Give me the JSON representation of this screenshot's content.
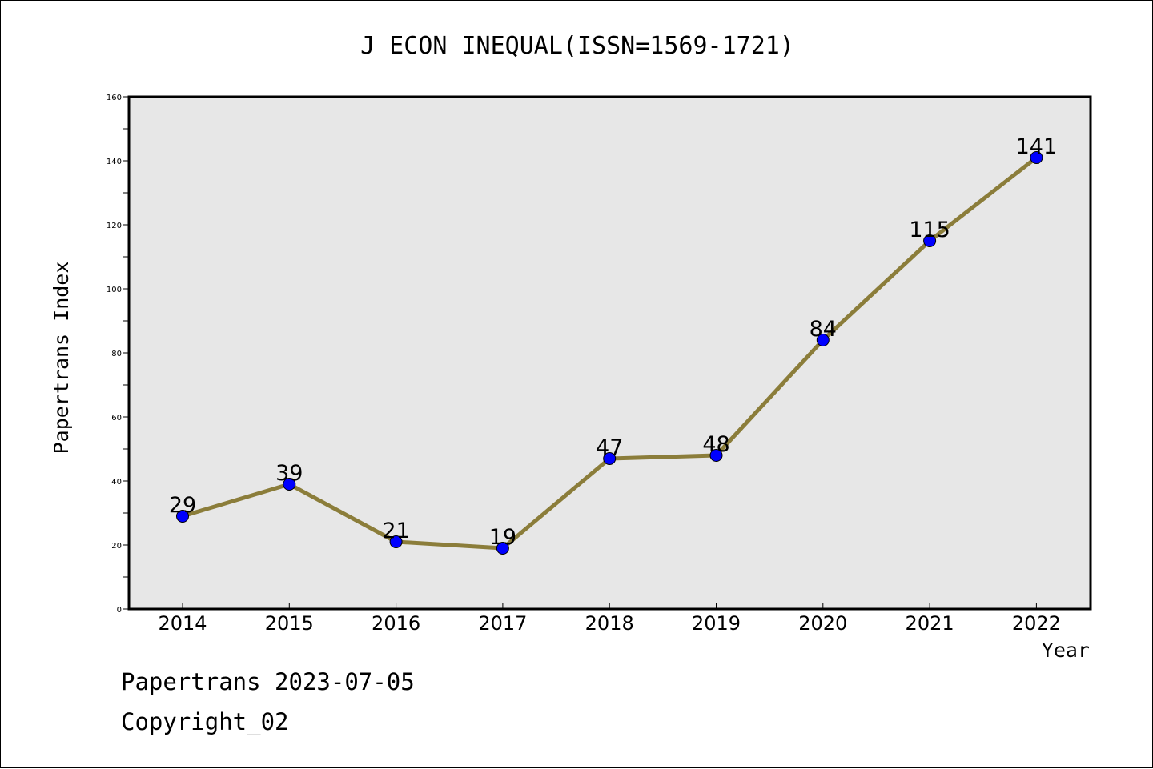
{
  "chart_data": {
    "type": "line",
    "title": "J ECON INEQUAL(ISSN=1569-1721)",
    "xlabel": "Year",
    "ylabel": "Papertrans Index",
    "categories": [
      "2014",
      "2015",
      "2016",
      "2017",
      "2018",
      "2019",
      "2020",
      "2021",
      "2022"
    ],
    "values": [
      29,
      39,
      21,
      19,
      47,
      48,
      84,
      115,
      141
    ],
    "ylim": [
      0,
      160
    ],
    "yticks": [
      0,
      20,
      40,
      60,
      80,
      100,
      120,
      140,
      160
    ],
    "grid": false,
    "data_labels": true,
    "colors": {
      "line": "#8B7D3A",
      "marker": "#0000FF",
      "plot_background": "#E7E7E7"
    }
  },
  "footer": {
    "line1": "Papertrans 2023-07-05",
    "line2": "Copyright_02"
  }
}
